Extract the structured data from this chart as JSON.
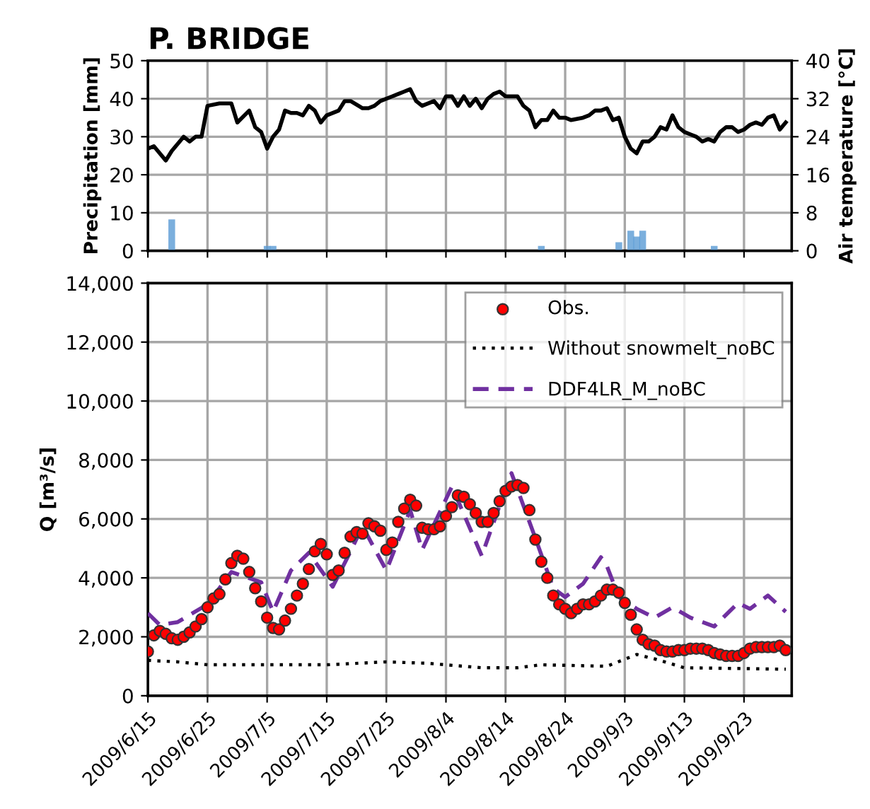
{
  "chart_data": [
    {
      "type": "bar",
      "title": "P. BRIDGE",
      "ylabel": "Precipitation [mm]",
      "y2label": "Air temperature [°C]",
      "xlim": [
        "2009-06-15",
        "2009-10-01"
      ],
      "ylim": [
        0,
        50
      ],
      "yticks": [
        0,
        10,
        20,
        30,
        40,
        50
      ],
      "y2lim": [
        0,
        40
      ],
      "y2ticks": [
        0,
        8,
        16,
        24,
        32,
        40
      ],
      "xticks": [
        {
          "value": "2009-06-15",
          "label": null
        },
        {
          "value": "2009-06-25",
          "label": null
        },
        {
          "value": "2009-07-05",
          "label": null
        },
        {
          "value": "2009-07-15",
          "label": null
        },
        {
          "value": "2009-07-25",
          "label": null
        },
        {
          "value": "2009-08-04",
          "label": null
        },
        {
          "value": "2009-08-14",
          "label": null
        },
        {
          "value": "2009-08-24",
          "label": null
        },
        {
          "value": "2009-09-03",
          "label": null
        },
        {
          "value": "2009-09-13",
          "label": null
        },
        {
          "value": "2009-09-23",
          "label": null
        }
      ],
      "tick_labels": "y",
      "grid": true,
      "series": [
        {
          "color": "#5b9bd5",
          "x": [
            "2009-06-19",
            "2009-07-05",
            "2009-07-06",
            "2009-08-20",
            "2009-09-02",
            "2009-09-04",
            "2009-09-05",
            "2009-09-06",
            "2009-09-18"
          ],
          "values": [
            8,
            1,
            1,
            1,
            2,
            5,
            3.5,
            5,
            1
          ]
        },
        {
          "type": "line",
          "axis": "y2",
          "color": "#000000",
          "line_style": "solid",
          "x": [
            "2009-06-15",
            "2009-06-16",
            "2009-06-18",
            "2009-06-19",
            "2009-06-21",
            "2009-06-22",
            "2009-06-23",
            "2009-06-24",
            "2009-06-25",
            "2009-06-27",
            "2009-06-29",
            "2009-06-30",
            "2009-07-02",
            "2009-07-03",
            "2009-07-04",
            "2009-07-05",
            "2009-07-06",
            "2009-07-07",
            "2009-07-08",
            "2009-07-09",
            "2009-07-10",
            "2009-07-11",
            "2009-07-12",
            "2009-07-13",
            "2009-07-14",
            "2009-07-15",
            "2009-07-17",
            "2009-07-18",
            "2009-07-19",
            "2009-07-21",
            "2009-07-22",
            "2009-07-23",
            "2009-07-24",
            "2009-07-26",
            "2009-07-27",
            "2009-07-28",
            "2009-07-29",
            "2009-07-30",
            "2009-07-31",
            "2009-08-02",
            "2009-08-03",
            "2009-08-04",
            "2009-08-05",
            "2009-08-06",
            "2009-08-07",
            "2009-08-08",
            "2009-08-09",
            "2009-08-10",
            "2009-08-11",
            "2009-08-12",
            "2009-08-13",
            "2009-08-14",
            "2009-08-16",
            "2009-08-17",
            "2009-08-18",
            "2009-08-19",
            "2009-08-20",
            "2009-08-21",
            "2009-08-22",
            "2009-08-23",
            "2009-08-24",
            "2009-08-25",
            "2009-08-27",
            "2009-08-28",
            "2009-08-29",
            "2009-08-30",
            "2009-08-31",
            "2009-09-01",
            "2009-09-02",
            "2009-09-03",
            "2009-09-04",
            "2009-09-05",
            "2009-09-06",
            "2009-09-07",
            "2009-09-08",
            "2009-09-09",
            "2009-09-10",
            "2009-09-11",
            "2009-09-12",
            "2009-09-13",
            "2009-09-14",
            "2009-09-15",
            "2009-09-16",
            "2009-09-17",
            "2009-09-18",
            "2009-09-19",
            "2009-09-20",
            "2009-09-21",
            "2009-09-22",
            "2009-09-23",
            "2009-09-24",
            "2009-09-25",
            "2009-09-26",
            "2009-09-27",
            "2009-09-28",
            "2009-09-29",
            "2009-09-30"
          ],
          "values": [
            21.5,
            22,
            19,
            21,
            24,
            23,
            24,
            24,
            30.5,
            31,
            31,
            27,
            29.5,
            26,
            25,
            21.5,
            24,
            25.5,
            29.5,
            29,
            29,
            28.5,
            30.5,
            29.5,
            27,
            28.5,
            29.5,
            31.5,
            31.5,
            30,
            30,
            30.5,
            31.5,
            32.5,
            33,
            33.5,
            34,
            31.5,
            30.5,
            31.5,
            30,
            32.5,
            32.5,
            30.5,
            32.5,
            30.5,
            32,
            30,
            32,
            33,
            33.5,
            32.5,
            32.5,
            30.5,
            29.5,
            26,
            27.5,
            27.5,
            29.5,
            28,
            28,
            27.5,
            28,
            28.5,
            29.5,
            29.5,
            30,
            27.5,
            28,
            24,
            21.5,
            20.5,
            23,
            23,
            24,
            26,
            25.5,
            28.5,
            26,
            25,
            24.5,
            24,
            23,
            23.5,
            23,
            25,
            26,
            26,
            25,
            25.5,
            26.5,
            27,
            26.5,
            28,
            28.5,
            25.5,
            27
          ]
        }
      ]
    },
    {
      "type": "line",
      "ylabel": "Q [m³/s]",
      "xlim": [
        "2009-06-15",
        "2009-10-01"
      ],
      "ylim": [
        0,
        14000
      ],
      "yticks": [
        {
          "value": 0,
          "label": "0"
        },
        {
          "value": 2000,
          "label": "2,000"
        },
        {
          "value": 4000,
          "label": "4,000"
        },
        {
          "value": 6000,
          "label": "6,000"
        },
        {
          "value": 8000,
          "label": "8,000"
        },
        {
          "value": 10000,
          "label": "10,000"
        },
        {
          "value": 12000,
          "label": "12,000"
        },
        {
          "value": 14000,
          "label": "14,000"
        }
      ],
      "xticks": [
        {
          "value": "2009-06-15",
          "label": "2009/6/15"
        },
        {
          "value": "2009-06-25",
          "label": "2009/6/25"
        },
        {
          "value": "2009-07-05",
          "label": "2009/7/5"
        },
        {
          "value": "2009-07-15",
          "label": "2009/7/15"
        },
        {
          "value": "2009-07-25",
          "label": "2009/7/25"
        },
        {
          "value": "2009-08-04",
          "label": "2009/8/4"
        },
        {
          "value": "2009-08-14",
          "label": "2009/8/14"
        },
        {
          "value": "2009-08-24",
          "label": "2009/8/24"
        },
        {
          "value": "2009-09-03",
          "label": "2009/9/3"
        },
        {
          "value": "2009-09-13",
          "label": "2009/9/13"
        },
        {
          "value": "2009-09-23",
          "label": "2009/9/23"
        }
      ],
      "grid": true,
      "legend": "top right",
      "series": [
        {
          "name": "Obs.",
          "type": "scatter",
          "marker": "circle",
          "color": "#ff0000",
          "x": [
            "2009-06-15",
            "2009-06-16",
            "2009-06-17",
            "2009-06-18",
            "2009-06-19",
            "2009-06-20",
            "2009-06-21",
            "2009-06-22",
            "2009-06-23",
            "2009-06-24",
            "2009-06-25",
            "2009-06-26",
            "2009-06-27",
            "2009-06-28",
            "2009-06-29",
            "2009-06-30",
            "2009-07-01",
            "2009-07-02",
            "2009-07-03",
            "2009-07-04",
            "2009-07-05",
            "2009-07-06",
            "2009-07-07",
            "2009-07-08",
            "2009-07-09",
            "2009-07-10",
            "2009-07-11",
            "2009-07-12",
            "2009-07-13",
            "2009-07-14",
            "2009-07-15",
            "2009-07-16",
            "2009-07-17",
            "2009-07-18",
            "2009-07-19",
            "2009-07-20",
            "2009-07-21",
            "2009-07-22",
            "2009-07-23",
            "2009-07-24",
            "2009-07-25",
            "2009-07-26",
            "2009-07-27",
            "2009-07-28",
            "2009-07-29",
            "2009-07-30",
            "2009-07-31",
            "2009-08-01",
            "2009-08-02",
            "2009-08-03",
            "2009-08-04",
            "2009-08-05",
            "2009-08-06",
            "2009-08-07",
            "2009-08-08",
            "2009-08-09",
            "2009-08-10",
            "2009-08-11",
            "2009-08-12",
            "2009-08-13",
            "2009-08-14",
            "2009-08-15",
            "2009-08-16",
            "2009-08-17",
            "2009-08-18",
            "2009-08-19",
            "2009-08-20",
            "2009-08-21",
            "2009-08-22",
            "2009-08-23",
            "2009-08-24",
            "2009-08-25",
            "2009-08-26",
            "2009-08-27",
            "2009-08-28",
            "2009-08-29",
            "2009-08-30",
            "2009-08-31",
            "2009-09-01",
            "2009-09-02",
            "2009-09-03",
            "2009-09-04",
            "2009-09-05",
            "2009-09-06",
            "2009-09-07",
            "2009-09-08",
            "2009-09-09",
            "2009-09-10",
            "2009-09-11",
            "2009-09-12",
            "2009-09-13",
            "2009-09-14",
            "2009-09-15",
            "2009-09-16",
            "2009-09-17",
            "2009-09-18",
            "2009-09-19",
            "2009-09-20",
            "2009-09-21",
            "2009-09-22",
            "2009-09-23",
            "2009-09-24",
            "2009-09-25",
            "2009-09-26",
            "2009-09-27",
            "2009-09-28",
            "2009-09-29",
            "2009-09-30"
          ],
          "values": [
            1500,
            2050,
            2200,
            2100,
            1950,
            1900,
            2000,
            2150,
            2350,
            2600,
            3000,
            3300,
            3450,
            3950,
            4500,
            4750,
            4650,
            4200,
            3650,
            3200,
            2650,
            2300,
            2250,
            2550,
            2950,
            3400,
            3800,
            4300,
            4900,
            5150,
            4800,
            4100,
            4250,
            4850,
            5400,
            5550,
            5500,
            5850,
            5750,
            5600,
            4950,
            5200,
            5900,
            6350,
            6650,
            6450,
            5700,
            5650,
            5650,
            5750,
            6100,
            6400,
            6800,
            6750,
            6500,
            6200,
            5900,
            5900,
            6200,
            6600,
            6950,
            7100,
            7150,
            7050,
            6300,
            5300,
            4550,
            4000,
            3400,
            3100,
            2950,
            2800,
            2950,
            3100,
            3100,
            3200,
            3400,
            3600,
            3600,
            3500,
            3150,
            2750,
            2250,
            1900,
            1750,
            1700,
            1550,
            1500,
            1500,
            1550,
            1550,
            1600,
            1600,
            1600,
            1550,
            1450,
            1400,
            1350,
            1350,
            1350,
            1450,
            1600,
            1650,
            1650,
            1650,
            1650,
            1700,
            1550
          ]
        },
        {
          "name": "Without snowmelt_noBC",
          "line_style": "dotted",
          "color": "#000000",
          "x": [
            "2009-06-15",
            "2009-06-20",
            "2009-06-25",
            "2009-07-15",
            "2009-07-25",
            "2009-08-01",
            "2009-08-10",
            "2009-08-16",
            "2009-08-20",
            "2009-08-31",
            "2009-09-05",
            "2009-09-08",
            "2009-09-13",
            "2009-09-30"
          ],
          "values": [
            1200,
            1150,
            1050,
            1050,
            1150,
            1100,
            950,
            950,
            1050,
            1000,
            1400,
            1250,
            950,
            900
          ]
        },
        {
          "name": "DDF4LR_M_noBC",
          "line_style": "dashed",
          "color": "#7030a0",
          "x": [
            "2009-06-15",
            "2009-06-17",
            "2009-06-20",
            "2009-06-25",
            "2009-06-29",
            "2009-07-04",
            "2009-07-06",
            "2009-07-09",
            "2009-07-12",
            "2009-07-16",
            "2009-07-19",
            "2009-07-21",
            "2009-07-25",
            "2009-07-29",
            "2009-07-31",
            "2009-08-05",
            "2009-08-10",
            "2009-08-13",
            "2009-08-15",
            "2009-08-19",
            "2009-08-22",
            "2009-08-24",
            "2009-08-27",
            "2009-08-30",
            "2009-08-31",
            "2009-09-02",
            "2009-09-05",
            "2009-09-08",
            "2009-09-11",
            "2009-09-14",
            "2009-09-18",
            "2009-09-22",
            "2009-09-24",
            "2009-09-27",
            "2009-09-30"
          ],
          "values": [
            2800,
            2400,
            2500,
            3100,
            4200,
            3850,
            2850,
            4250,
            4850,
            3700,
            4900,
            5750,
            4250,
            6300,
            4950,
            7100,
            4750,
            6450,
            7550,
            5350,
            3650,
            3350,
            3800,
            4700,
            4400,
            3350,
            2950,
            2650,
            3000,
            2650,
            2350,
            3150,
            2950,
            3400,
            2850
          ]
        }
      ]
    }
  ]
}
